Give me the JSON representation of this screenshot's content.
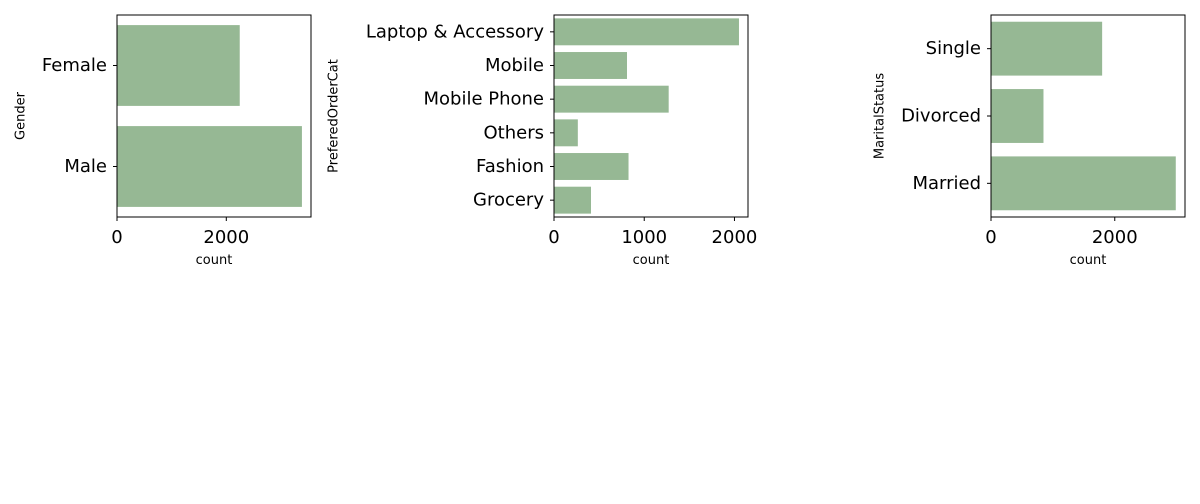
{
  "chart_data": [
    {
      "type": "bar",
      "orientation": "horizontal",
      "categories": [
        "Female",
        "Male"
      ],
      "values": [
        2246,
        3384
      ],
      "xlabel": "count",
      "ylabel": "Gender",
      "xlim": [
        0,
        3550
      ],
      "xticks": [
        0,
        2000
      ],
      "grid": false,
      "bar_color": "#96b894"
    },
    {
      "type": "bar",
      "orientation": "horizontal",
      "categories": [
        "Laptop & Accessory",
        "Mobile",
        "Mobile Phone",
        "Others",
        "Fashion",
        "Grocery"
      ],
      "values": [
        2050,
        809,
        1271,
        264,
        826,
        410
      ],
      "xlabel": "count",
      "ylabel": "PreferedOrderCat",
      "xlim": [
        0,
        2150
      ],
      "xticks": [
        0,
        1000,
        2000
      ],
      "grid": false,
      "bar_color": "#96b894"
    },
    {
      "type": "bar",
      "orientation": "horizontal",
      "categories": [
        "Single",
        "Divorced",
        "Married"
      ],
      "values": [
        1796,
        848,
        2986
      ],
      "xlabel": "count",
      "ylabel": "MaritalStatus",
      "xlim": [
        0,
        3135
      ],
      "xticks": [
        0,
        2000
      ],
      "grid": false,
      "bar_color": "#96b894"
    }
  ]
}
